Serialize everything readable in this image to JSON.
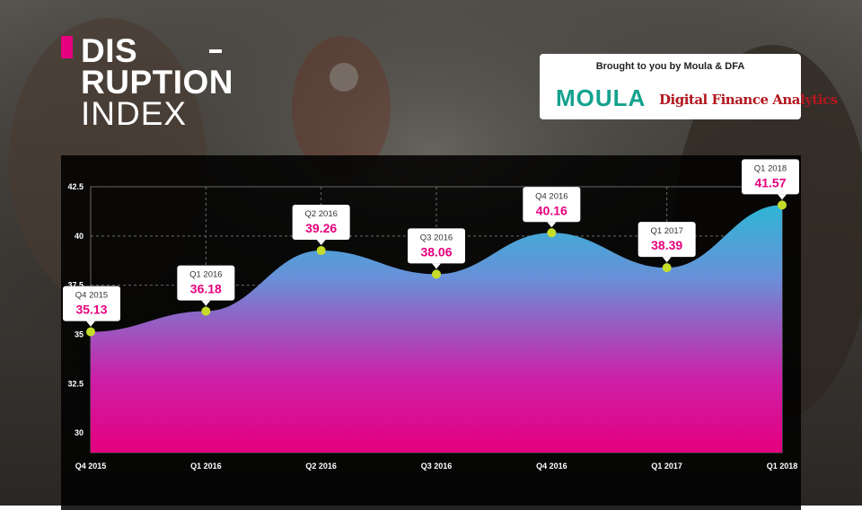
{
  "title": {
    "line1": "DIS",
    "line2": "RUPTION",
    "line3": "INDEX"
  },
  "sponsor": {
    "text": "Brought to you by Moula & DFA",
    "logo1": "MOULA",
    "logo2": "Digital Finance Analytics"
  },
  "colors": {
    "accent": "#e5007e",
    "area_top": "#2fb6d6",
    "area_bottom": "#e5007e",
    "point": "#c6dc2b"
  },
  "chart_data": {
    "type": "area",
    "title": "",
    "xlabel": "",
    "ylabel": "",
    "categories": [
      "Q4 2015",
      "Q1 2016",
      "Q2 2016",
      "Q3 2016",
      "Q4 2016",
      "Q1 2017",
      "Q1 2018"
    ],
    "values": [
      35.13,
      36.18,
      39.26,
      38.06,
      40.16,
      38.39,
      41.57
    ],
    "value_labels": [
      "35.13",
      "36.18",
      "39.26",
      "38.06",
      "40.16",
      "38.39",
      "41.57"
    ],
    "yticks": [
      "30",
      "32.5",
      "35",
      "37.5",
      "40",
      "42.5"
    ],
    "ylim": [
      29,
      42.5
    ],
    "grid": true,
    "legend": "none"
  }
}
